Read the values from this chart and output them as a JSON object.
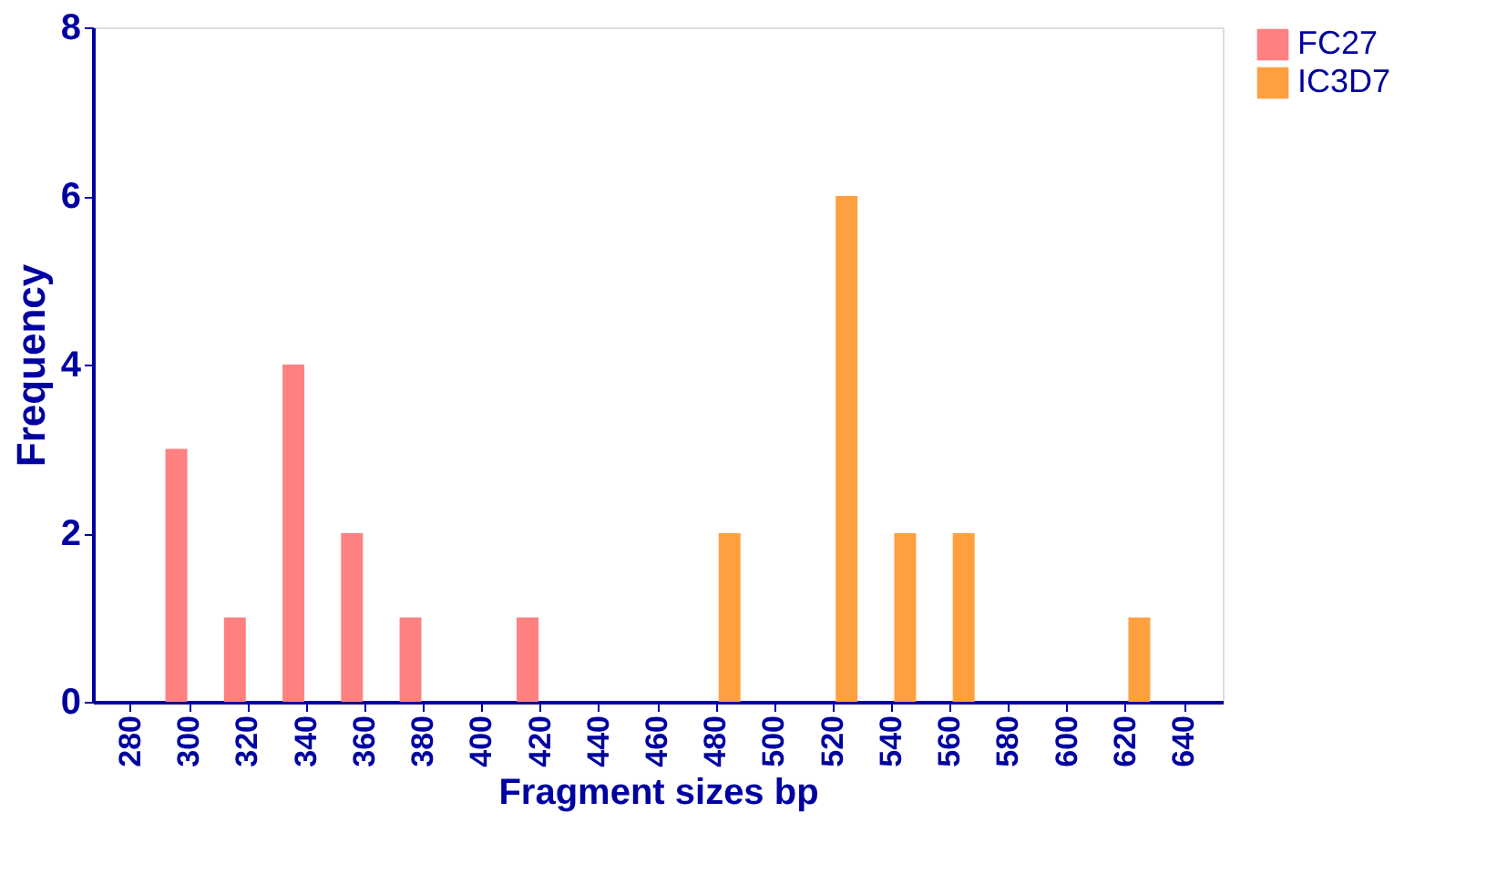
{
  "chart_data": {
    "type": "bar",
    "xlabel": "Fragment sizes bp",
    "ylabel": "Frequency",
    "categories": [
      "280",
      "300",
      "320",
      "340",
      "360",
      "380",
      "400",
      "420",
      "440",
      "460",
      "480",
      "500",
      "520",
      "540",
      "560",
      "580",
      "600",
      "620",
      "640"
    ],
    "series": [
      {
        "name": "FC27",
        "color": "#ff8080",
        "values": [
          null,
          3,
          1,
          4,
          2,
          1,
          null,
          1,
          null,
          null,
          null,
          null,
          null,
          null,
          null,
          null,
          null,
          null,
          null
        ]
      },
      {
        "name": "IC3D7",
        "color": "#ffa040",
        "values": [
          null,
          null,
          null,
          null,
          null,
          null,
          null,
          null,
          null,
          null,
          2,
          null,
          6,
          2,
          2,
          null,
          null,
          1,
          null
        ]
      }
    ],
    "ylim": [
      0,
      8
    ],
    "yticks": [
      0,
      2,
      4,
      6,
      8
    ],
    "grid": false,
    "legend": "top right"
  }
}
